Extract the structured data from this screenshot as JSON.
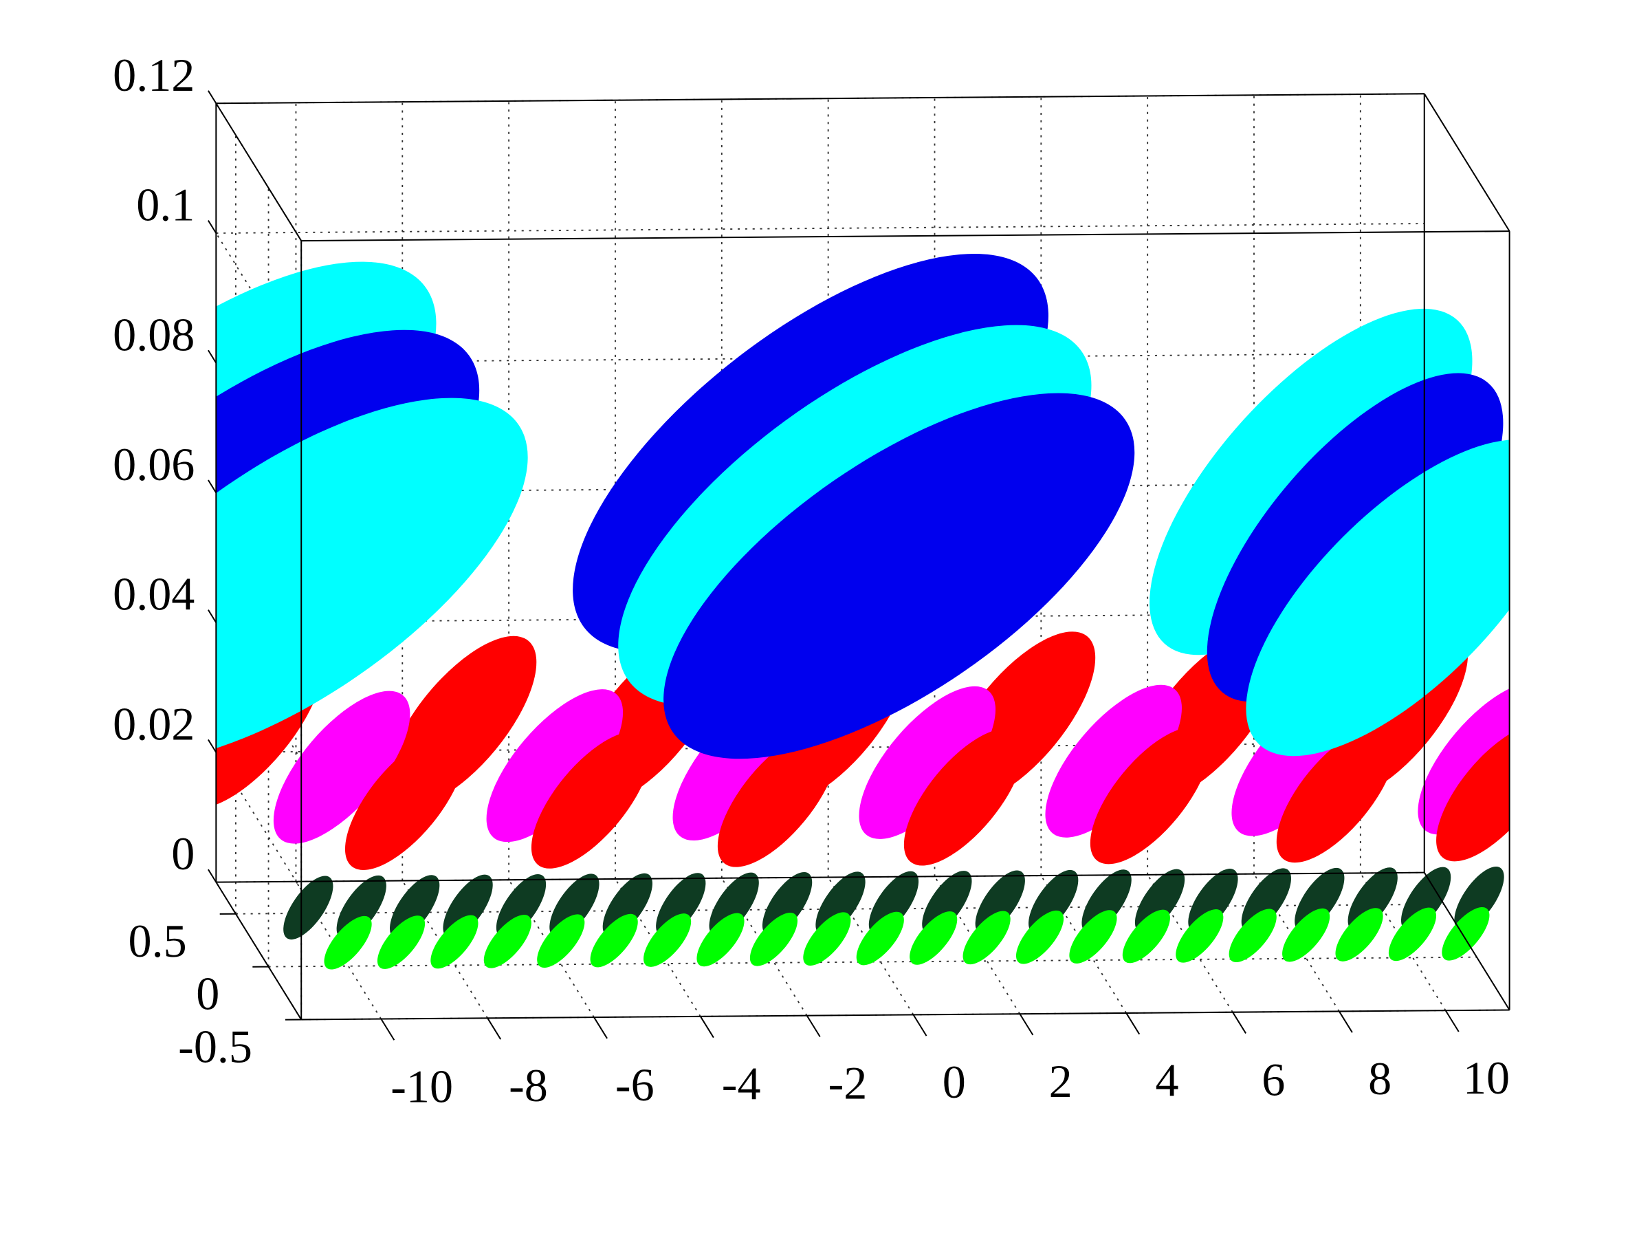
{
  "chart_data": {
    "type": "ellipsoid3d",
    "xlim": [
      -11.5,
      11.2
    ],
    "xticks": [
      -10,
      -8,
      -6,
      -4,
      -2,
      0,
      2,
      4,
      6,
      8,
      10
    ],
    "ylim": [
      -0.5,
      0.8
    ],
    "yticks": [
      -0.5,
      0,
      0.5
    ],
    "zlim": [
      0,
      0.12
    ],
    "zticks": [
      0,
      0.02,
      0.04,
      0.06,
      0.08,
      0.1,
      0.12
    ],
    "grid": true,
    "series": [
      {
        "color": "#ff0000",
        "y": 0.3,
        "x": [
          -11.5,
          -7.5,
          -4,
          -0.5,
          3,
          6.5,
          10
        ],
        "values": [
          0.045,
          0.045,
          0.045,
          0.045,
          0.045,
          0.045,
          0.045
        ],
        "sizes": [
          2.5,
          2.5,
          2.5,
          2.5,
          2.5,
          2.5,
          2.5
        ]
      },
      {
        "color": "#ff00ff",
        "y": 0.1,
        "x": [
          -10,
          -6,
          -2.5,
          1,
          4.5,
          8,
          11.5
        ],
        "values": [
          0.04,
          0.04,
          0.04,
          0.04,
          0.04,
          0.04,
          0.04
        ],
        "sizes": [
          2.3,
          2.3,
          2.3,
          2.3,
          2.3,
          2.3,
          2.3
        ]
      },
      {
        "color": "#ff0000",
        "y": -0.05,
        "x": [
          -9,
          -5.5,
          -2,
          1.5,
          5,
          8.5,
          11.5
        ],
        "values": [
          0.036,
          0.036,
          0.036,
          0.036,
          0.036,
          0.036,
          0.036
        ],
        "sizes": [
          2,
          2,
          2,
          2,
          2,
          2,
          2
        ]
      },
      {
        "color": "#00ffff",
        "y": 0.5,
        "x": [
          -12.2,
          8.7
        ],
        "values": [
          0.0965,
          0.09
        ],
        "sizes": [
          8.5,
          5.5
        ]
      },
      {
        "color": "#0000ee",
        "y": 0.5,
        "x": [
          -0.7
        ],
        "values": [
          0.097
        ],
        "sizes": [
          8.5
        ]
      },
      {
        "color": "#0000ee",
        "y": 0.15,
        "x": [
          -11.8,
          9.1
        ],
        "values": [
          0.0915,
          0.086
        ],
        "sizes": [
          8.5,
          5
        ]
      },
      {
        "color": "#00ffff",
        "y": 0.15,
        "x": [
          -0.3
        ],
        "values": [
          0.0915
        ],
        "sizes": [
          8.5
        ]
      },
      {
        "color": "#00ffff",
        "y": -0.2,
        "x": [
          -11.3,
          9.6
        ],
        "values": [
          0.0865,
          0.081
        ],
        "sizes": [
          8.5,
          5.5
        ]
      },
      {
        "color": "#0000ee",
        "y": -0.2,
        "x": [
          0.1
        ],
        "values": [
          0.0865
        ],
        "sizes": [
          8.5
        ]
      },
      {
        "color": "#0e3b22",
        "y": -0.2,
        "x": [
          -11,
          -10,
          -9,
          -8,
          -7,
          -6,
          -5,
          -4,
          -3,
          -2,
          -1,
          0,
          1,
          2,
          3,
          4,
          5,
          6,
          7,
          8,
          9,
          10,
          11
        ],
        "values": [
          0.017,
          0.017,
          0.017,
          0.017,
          0.017,
          0.017,
          0.017,
          0.017,
          0.017,
          0.017,
          0.017,
          0.017,
          0.017,
          0.017,
          0.017,
          0.017,
          0.017,
          0.017,
          0.017,
          0.017,
          0.017,
          0.017,
          0.017
        ],
        "sizes": [
          0.8,
          0.8,
          0.8,
          0.8,
          0.8,
          0.8,
          0.8,
          0.8,
          0.8,
          0.8,
          0.8,
          0.8,
          0.8,
          0.8,
          0.8,
          0.8,
          0.8,
          0.8,
          0.8,
          0.8,
          0.8,
          0.8,
          0.8
        ]
      },
      {
        "color": "#00ff00",
        "y": -0.4,
        "x": [
          -10.5,
          -9.5,
          -8.5,
          -7.5,
          -6.5,
          -5.5,
          -4.5,
          -3.5,
          -2.5,
          -1.5,
          -0.5,
          0.5,
          1.5,
          2.5,
          3.5,
          4.5,
          5.5,
          6.5,
          7.5,
          8.5,
          9.5,
          10.5
        ],
        "values": [
          0.014,
          0.014,
          0.014,
          0.014,
          0.014,
          0.014,
          0.014,
          0.014,
          0.014,
          0.014,
          0.014,
          0.014,
          0.014,
          0.014,
          0.014,
          0.014,
          0.014,
          0.014,
          0.014,
          0.014,
          0.014,
          0.014
        ],
        "sizes": [
          0.8,
          0.8,
          0.8,
          0.8,
          0.8,
          0.8,
          0.8,
          0.8,
          0.8,
          0.8,
          0.8,
          0.8,
          0.8,
          0.8,
          0.8,
          0.8,
          0.8,
          0.8,
          0.8,
          0.8,
          0.8,
          0.8
        ]
      }
    ]
  }
}
